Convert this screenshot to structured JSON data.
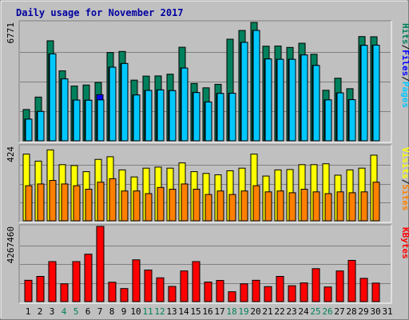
{
  "chart_data": {
    "type": "bar",
    "title": "Daily usage for November 2017",
    "days": [
      "1",
      "2",
      "3",
      "4",
      "5",
      "6",
      "7",
      "8",
      "9",
      "10",
      "11",
      "12",
      "13",
      "14",
      "15",
      "16",
      "17",
      "18",
      "19",
      "20",
      "21",
      "22",
      "23",
      "24",
      "25",
      "26",
      "27",
      "28",
      "29",
      "30",
      "31"
    ],
    "weekend_days": [
      "4",
      "5",
      "11",
      "12",
      "18",
      "19",
      "25",
      "26"
    ],
    "colors": {
      "title": "#0000a0",
      "hits": "#00805c",
      "files": "#0000ff",
      "pages": "#00c8ff",
      "visits": "#ffff00",
      "sites": "#ff8000",
      "kbytes": "#ff0000",
      "weekend_label": "#00805c",
      "plot_bg": "#c0c0c0",
      "grid": "#808080"
    },
    "panels": [
      {
        "name": "hits-files-pages",
        "ymax_label": "6771",
        "ymax": 6771,
        "legend": [
          "Pages",
          "Files",
          "Hits"
        ],
        "legend_sep": "/",
        "series": [
          {
            "name": "Hits",
            "values": [
              1790,
              2500,
              5720,
              4000,
              3130,
              3190,
              3340,
              5050,
              5110,
              3470,
              3700,
              3710,
              3810,
              5350,
              3280,
              3030,
              3230,
              5810,
              6310,
              6770,
              5410,
              5420,
              5340,
              5580,
              4950,
              2890,
              3580,
              2980,
              5960,
              5950,
              null
            ]
          },
          {
            "name": "Files",
            "values": [
              1240,
              1680,
              4970,
              3540,
              2330,
              2320,
              2640,
              4210,
              4420,
              2620,
              2880,
              2910,
              2870,
              4160,
              2760,
              2220,
              2710,
              2720,
              5630,
              6310,
              4680,
              4660,
              4660,
              4910,
              4310,
              2340,
              2740,
              2350,
              5460,
              5470,
              null
            ]
          },
          {
            "name": "Pages",
            "values": [
              1240,
              1680,
              4970,
              3540,
              2330,
              2320,
              2340,
              4210,
              4420,
              2620,
              2880,
              2910,
              2870,
              4160,
              2760,
              2220,
              2710,
              2720,
              5630,
              6310,
              4680,
              4660,
              4660,
              4910,
              4310,
              2340,
              2740,
              2350,
              5460,
              5470,
              null
            ]
          }
        ]
      },
      {
        "name": "visits-sites",
        "ymax_label": "424",
        "ymax": 424,
        "legend": [
          "Sites",
          "Visits"
        ],
        "legend_sep": "/",
        "series": [
          {
            "name": "Visits",
            "values": [
              380,
              340,
              404,
              320,
              315,
              280,
              350,
              365,
              290,
              250,
              300,
              306,
              300,
              330,
              280,
              270,
              262,
              285,
              300,
              380,
              255,
              290,
              292,
              320,
              320,
              325,
              260,
              290,
              300,
              374,
              null
            ]
          },
          {
            "name": "Sites",
            "values": [
              200,
              210,
              230,
              210,
              200,
              180,
              220,
              240,
              170,
              170,
              155,
              190,
              180,
              210,
              180,
              150,
              170,
              150,
              170,
              200,
              165,
              170,
              160,
              180,
              165,
              155,
              165,
              160,
              165,
              220,
              null
            ]
          }
        ]
      },
      {
        "name": "kbytes",
        "ymax_label": "4267460",
        "ymax": 4267460,
        "legend": [
          "KBytes"
        ],
        "legend_sep": "",
        "series": [
          {
            "name": "KBytes",
            "values": [
              1210000,
              1430000,
              2270000,
              1010000,
              2270000,
              2690000,
              4267460,
              1100000,
              740000,
              2370000,
              1790000,
              1350000,
              860000,
              1740000,
              2270000,
              1110000,
              1200000,
              560000,
              1010000,
              1210000,
              850000,
              1430000,
              900000,
              1060000,
              1870000,
              830000,
              1740000,
              2340000,
              1320000,
              1050000,
              null
            ]
          }
        ]
      }
    ],
    "grid": true
  }
}
